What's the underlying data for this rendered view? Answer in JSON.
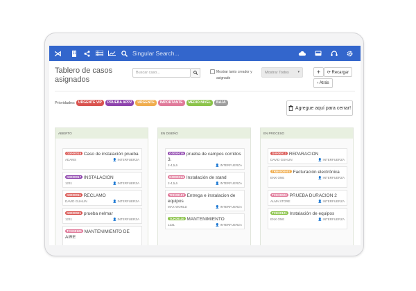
{
  "topbar": {
    "logo_glyph": "⋊",
    "search_placeholder": "Singular Search...",
    "icons": [
      "building-icon",
      "share-icon",
      "list-icon",
      "chart-icon",
      "search-icon"
    ],
    "right_icons": [
      "cloud-icon",
      "inbox-icon",
      "headset-icon",
      "gear-icon"
    ]
  },
  "header": {
    "title": "Tablero de casos asignados",
    "search_placeholder": "Buscar caso...",
    "checkbox_label": "Mostrar tanto creador y asignado",
    "select_value": "Mostrar Todos",
    "add_label": "+",
    "reload_label": "⟳ Recargar",
    "back_label": "‹ Atrás"
  },
  "priorities": {
    "label": "Prioridades:",
    "items": [
      {
        "label": "URGENTE VIP",
        "color": "#d9534f"
      },
      {
        "label": "PRUEBA APPZ",
        "color": "#8e44ad"
      },
      {
        "label": "URGENTE",
        "color": "#f0ad4e"
      },
      {
        "label": "IMPORTANTE",
        "color": "#e07a9a"
      },
      {
        "label": "MEDIO NIVEL",
        "color": "#8bc34a"
      },
      {
        "label": "BAJA",
        "color": "#9e9e9e"
      }
    ]
  },
  "close_button": {
    "label": "Agregue aquí para cerrar!"
  },
  "columns": [
    {
      "title": "ABIERTO",
      "cards": [
        {
          "code": "G0000015",
          "color": "#d9534f",
          "title": "Caso de instalación prueba",
          "client": "ADAMS",
          "assignee": "INTERFUERZA"
        },
        {
          "code": "G0000017",
          "color": "#8e44ad",
          "title": "INSTALACION",
          "client": "1231",
          "assignee": "INTERFUERZA"
        },
        {
          "code": "G0000011",
          "color": "#d9534f",
          "title": "RECLAMO",
          "client": "DAVID GUHLIN",
          "assignee": "INTERFUERZA"
        },
        {
          "code": "G0000021",
          "color": "#d9534f",
          "title": "prueba nelmar",
          "client": "1231",
          "assignee": "INTERFUERZA"
        },
        {
          "code": "TCK00126",
          "color": "#e07a9a",
          "title": "MANTENIMIENTO DE AIRE",
          "client": "",
          "assignee": ""
        }
      ]
    },
    {
      "title": "EN DISEÑO",
      "cards": [
        {
          "code": "G0000016",
          "color": "#8e44ad",
          "title": "prueba de campos corridos 3.",
          "client": "2-4,5,6",
          "assignee": "INTERFUERZA"
        },
        {
          "code": "G0000014",
          "color": "#e07a9a",
          "title": "Instalación de stand",
          "client": "2-4,5,6",
          "assignee": "INTERFUERZA"
        },
        {
          "code": "TCK00107",
          "color": "#e07a9a",
          "title": "Entrega e instalacion de equipos",
          "client": "MAX WORLD",
          "assignee": "INTERFUERZA"
        },
        {
          "code": "TCK00110",
          "color": "#8bc34a",
          "title": "MANTENIMIENTO",
          "client": "1231",
          "assignee": "INTERFUERZA"
        }
      ]
    },
    {
      "title": "EN PROCESO",
      "cards": [
        {
          "code": "G0000013",
          "color": "#d9534f",
          "title": "REPARACION",
          "client": "DAVID GUHLIN",
          "assignee": "INTERFUERZA"
        },
        {
          "code": "TRB0000007",
          "color": "#f0ad4e",
          "title": "Facturación electrónica",
          "client": "ENX ONE",
          "assignee": "INTERFUERZA"
        },
        {
          "code": "TCK00022",
          "color": "#e07a9a",
          "title": "PRUEBA DURACION 2",
          "client": "ALMA STORE",
          "assignee": "INTERFUERZA"
        },
        {
          "code": "TCK00121",
          "color": "#8bc34a",
          "title": "Instalación de equipos",
          "client": "ENX ONE",
          "assignee": "INTERFUERZA"
        }
      ]
    }
  ]
}
